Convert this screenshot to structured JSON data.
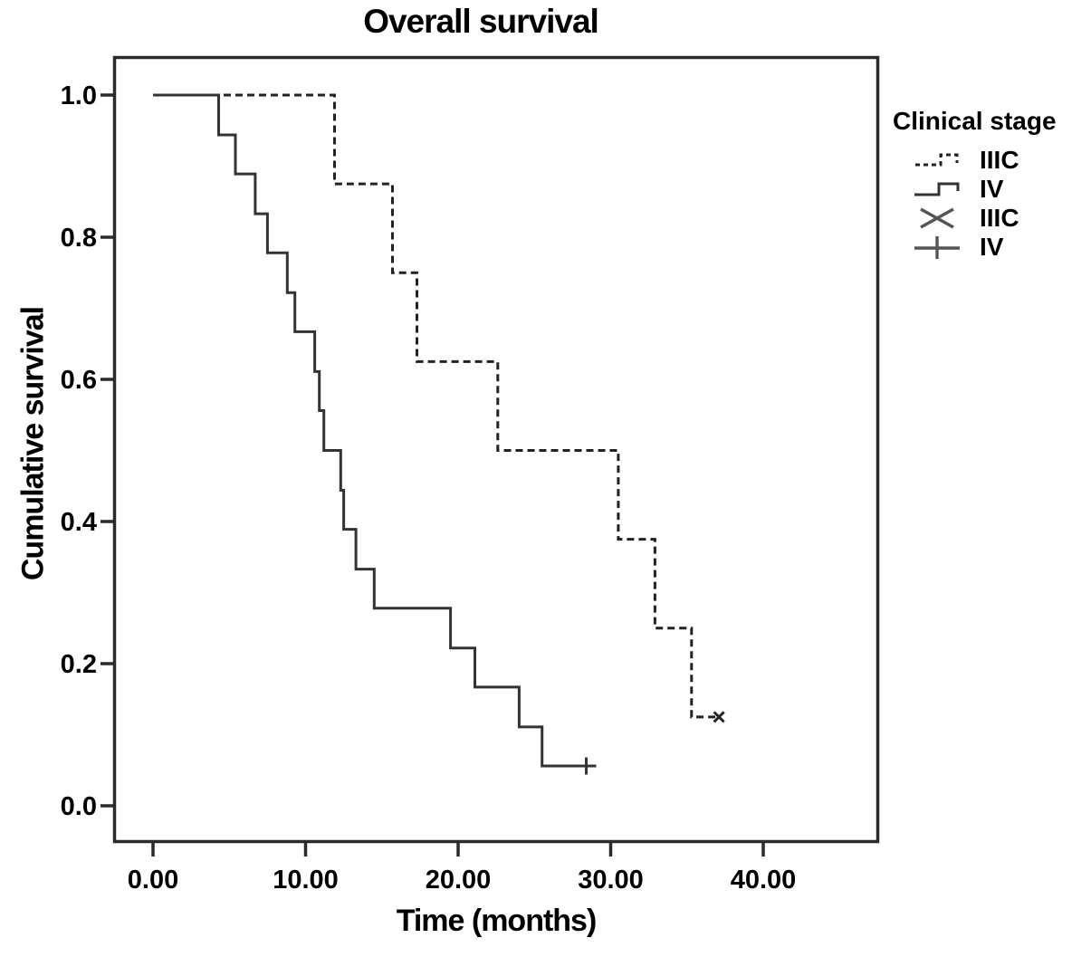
{
  "chart_data": {
    "type": "line",
    "subtype": "kaplan-meier-step-curves",
    "title": "Overall survival",
    "xlabel": "Time (months)",
    "ylabel": "Cumulative survival",
    "grid": false,
    "xlim": [
      -2.5,
      47.5
    ],
    "ylim": [
      -0.05,
      1.05
    ],
    "x_ticks": [
      {
        "value": 0,
        "label": "0.00"
      },
      {
        "value": 10,
        "label": "10.00"
      },
      {
        "value": 20,
        "label": "20.00"
      },
      {
        "value": 30,
        "label": "30.00"
      },
      {
        "value": 40,
        "label": "40.00"
      }
    ],
    "y_ticks": [
      {
        "value": 0.0,
        "label": "0.0"
      },
      {
        "value": 0.2,
        "label": "0.2"
      },
      {
        "value": 0.4,
        "label": "0.4"
      },
      {
        "value": 0.6,
        "label": "0.6"
      },
      {
        "value": 0.8,
        "label": "0.8"
      },
      {
        "value": 1.0,
        "label": "1.0"
      }
    ],
    "legend": {
      "title": "Clinical stage",
      "position": "right-outside",
      "entries": [
        {
          "label": "IIIC",
          "style": "dashed-step-line"
        },
        {
          "label": "IV",
          "style": "solid-step-line"
        },
        {
          "label": "IIIC",
          "style": "x-censor-marker"
        },
        {
          "label": "IV",
          "style": "plus-censor-marker"
        }
      ]
    },
    "series": [
      {
        "name": "IIIC",
        "line": "dashed",
        "color": "#222222",
        "steps": [
          [
            0,
            1.0
          ],
          [
            11.9,
            0.875
          ],
          [
            15.7,
            0.75
          ],
          [
            17.3,
            0.625
          ],
          [
            22.6,
            0.5
          ],
          [
            30.5,
            0.375
          ],
          [
            32.9,
            0.25
          ],
          [
            35.3,
            0.125
          ]
        ],
        "censor": {
          "time": 37.1,
          "survival": 0.125,
          "marker": "x"
        }
      },
      {
        "name": "IV",
        "line": "solid",
        "color": "#333333",
        "steps": [
          [
            0,
            1.0
          ],
          [
            4.3,
            0.944
          ],
          [
            5.4,
            0.889
          ],
          [
            6.7,
            0.833
          ],
          [
            7.5,
            0.778
          ],
          [
            8.8,
            0.722
          ],
          [
            9.3,
            0.667
          ],
          [
            10.6,
            0.611
          ],
          [
            10.9,
            0.556
          ],
          [
            11.2,
            0.5
          ],
          [
            12.3,
            0.444
          ],
          [
            12.5,
            0.389
          ],
          [
            13.3,
            0.333
          ],
          [
            14.5,
            0.278
          ],
          [
            19.5,
            0.222
          ],
          [
            21.1,
            0.167
          ],
          [
            24.0,
            0.111
          ],
          [
            25.5,
            0.056
          ]
        ],
        "censor": {
          "time": 28.4,
          "survival": 0.056,
          "marker": "plus"
        }
      }
    ]
  }
}
